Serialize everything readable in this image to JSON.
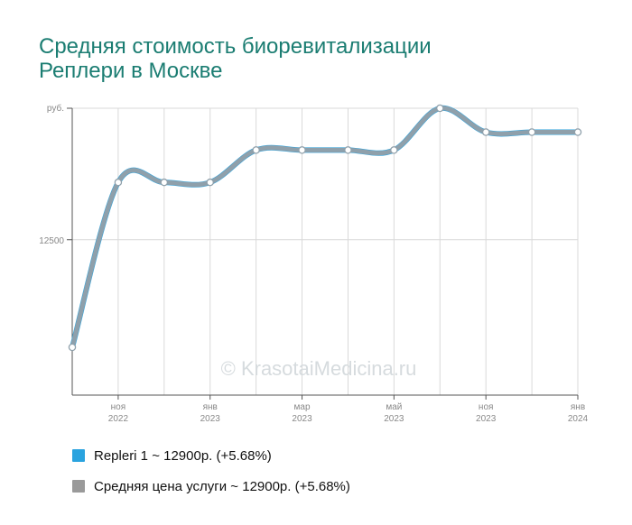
{
  "title_lines": [
    "Средняя стоимость биоревитализации",
    "Реплери в Москве"
  ],
  "watermark": "© KrasotaiMedicina.ru",
  "chart_data": {
    "type": "line",
    "y_unit_label": "руб.",
    "y_tick_value": "12500",
    "x_labels": [
      {
        "month": "ноя",
        "year": "2022"
      },
      {
        "month": "янв",
        "year": "2023"
      },
      {
        "month": "мар",
        "year": "2023"
      },
      {
        "month": "май",
        "year": "2023"
      },
      {
        "month": "ноя",
        "year": "2023"
      },
      {
        "month": "янв",
        "year": "2024"
      }
    ],
    "series": [
      {
        "name": "Repleri 1",
        "color": "#2aa3df",
        "values": [
          11600,
          12980,
          12980,
          12980,
          13250,
          13250,
          13250,
          13250,
          13600,
          13400,
          13400,
          13400
        ]
      },
      {
        "name": "Средняя цена услуги",
        "color": "#8fa0ab",
        "values": [
          11600,
          12980,
          12980,
          12980,
          13250,
          13250,
          13250,
          13250,
          13600,
          13400,
          13400,
          13400
        ]
      }
    ],
    "ylim": [
      11200,
      13600
    ],
    "legend": [
      {
        "label": "Repleri 1 ~ 12900р. (+5.68%)",
        "color": "#2aa3df"
      },
      {
        "label": "Средняя цена услуги ~ 12900р. (+5.68%)",
        "color": "#9a9a9a"
      }
    ],
    "legend_position": "bottom"
  }
}
